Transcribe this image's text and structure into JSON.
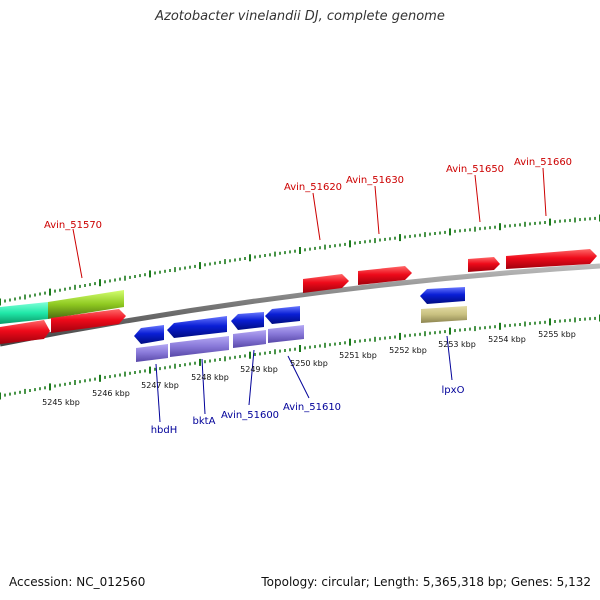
{
  "title": "Azotobacter vinelandii DJ, complete genome",
  "footer": {
    "accession": "Accession: NC_012560",
    "topology": "Topology: circular; Length: 5,365,318 bp; Genes: 5,132"
  },
  "scale": {
    "unit": "kbp",
    "labels": [
      "5245 kbp",
      "5246 kbp",
      "5247 kbp",
      "5248 kbp",
      "5249 kbp",
      "5250 kbp",
      "5251 kbp",
      "5252 kbp",
      "5253 kbp",
      "5254 kbp",
      "5255 kbp"
    ]
  },
  "gene_labels_forward": [
    "Avin_51570",
    "Avin_51620",
    "Avin_51630",
    "Avin_51650",
    "Avin_51660"
  ],
  "gene_labels_reverse": [
    "hbdH",
    "bktA",
    "Avin_51600",
    "Avin_51610",
    "lpxO"
  ],
  "colors": {
    "forward_gene": "#e8001c",
    "reverse_gene": "#0a1fd6",
    "reverse_cog": "#8878d8",
    "lpxO_cog": "#c8c080",
    "teal_gene": "#20e8a8",
    "olive_gene": "#8ec820",
    "backbone": "#777777",
    "tick": "#1a7a1a",
    "forward_label": "#cc0000",
    "reverse_label": "#000099"
  }
}
